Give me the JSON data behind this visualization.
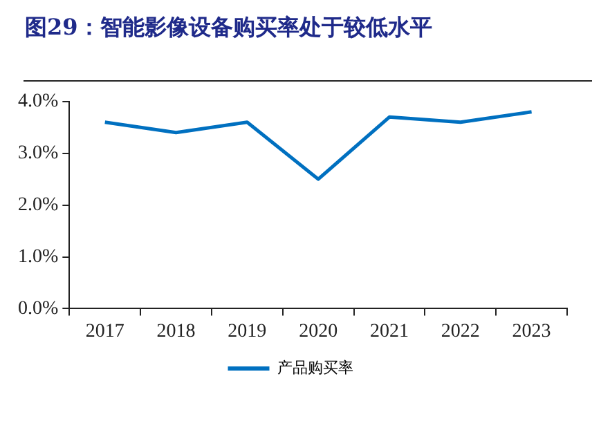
{
  "chart_data": {
    "type": "line",
    "title": "图29：智能影像设备购买率处于较低水平",
    "categories": [
      "2017",
      "2018",
      "2019",
      "2020",
      "2021",
      "2022",
      "2023"
    ],
    "series": [
      {
        "name": "产品购买率",
        "color": "#0070c0",
        "values": [
          3.6,
          3.4,
          3.6,
          2.5,
          3.7,
          3.6,
          3.8
        ]
      }
    ],
    "ylim": [
      0,
      4
    ],
    "yticks": [
      {
        "value": 0,
        "label": "0.0%"
      },
      {
        "value": 1,
        "label": "1.0%"
      },
      {
        "value": 2,
        "label": "2.0%"
      },
      {
        "value": 3,
        "label": "3.0%"
      },
      {
        "value": 4,
        "label": "4.0%"
      }
    ],
    "grid": false,
    "legend": "bottom",
    "marker": "none",
    "line_style": "solid"
  }
}
